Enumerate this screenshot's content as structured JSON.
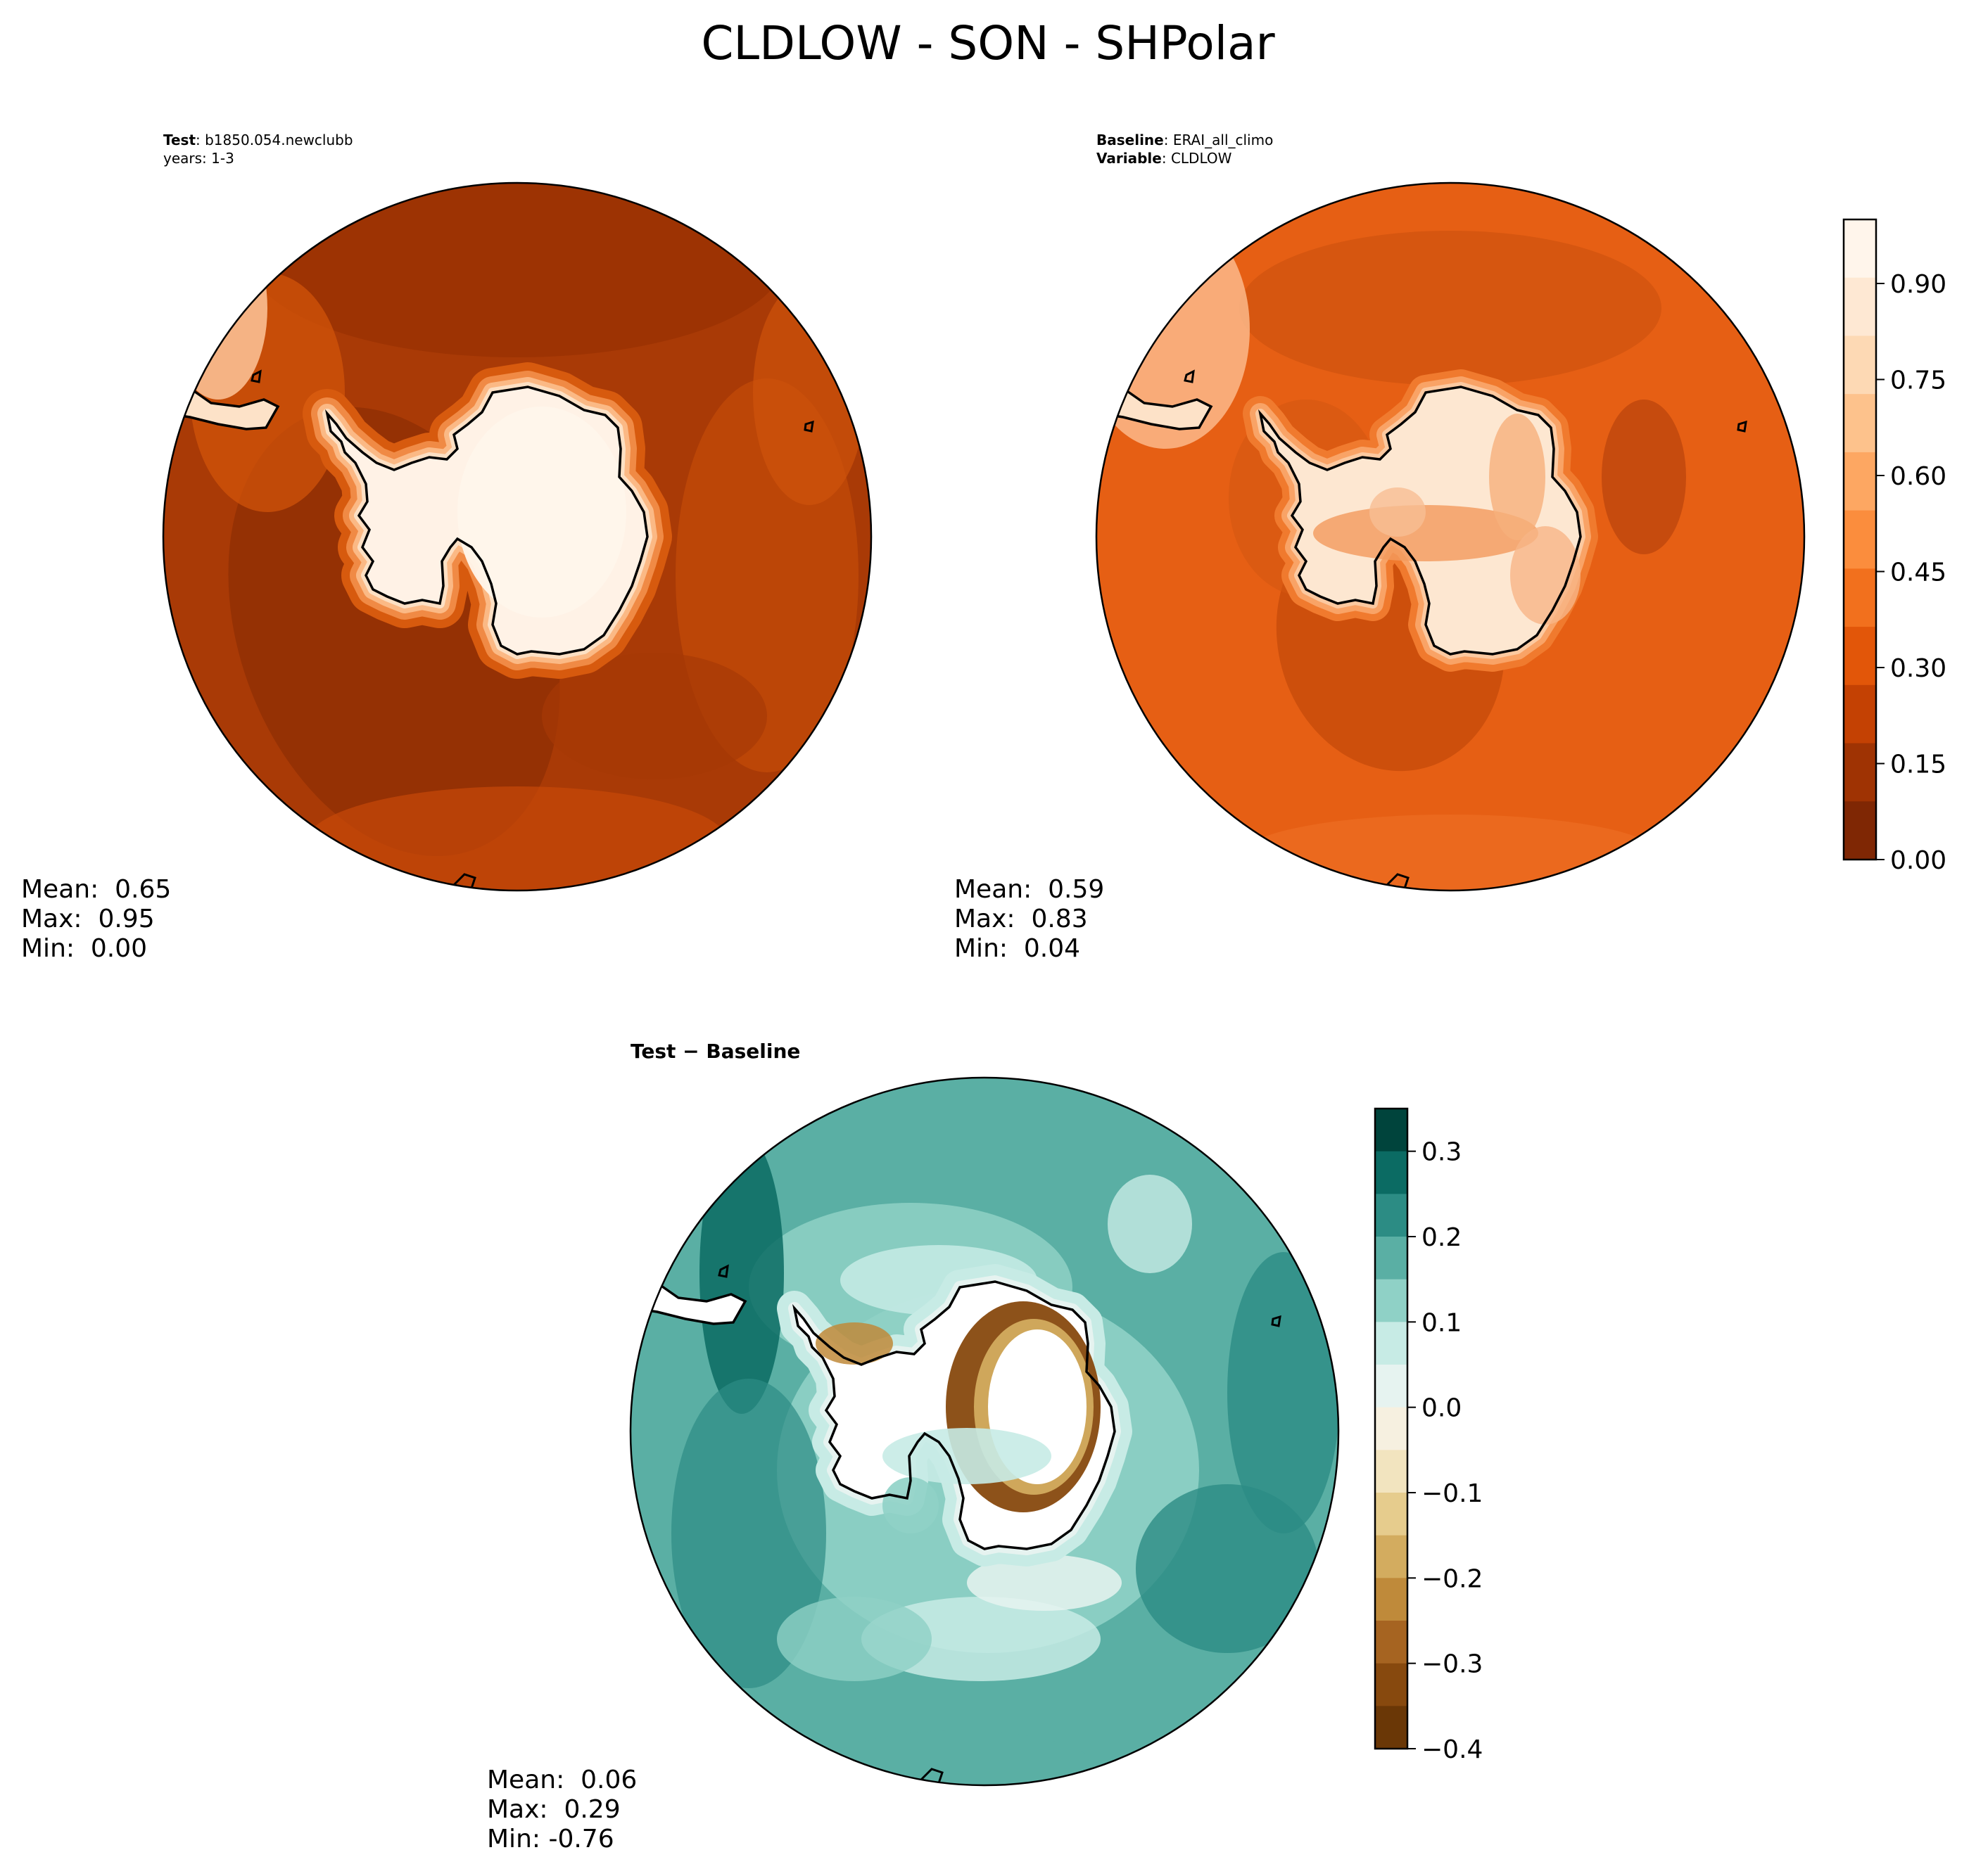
{
  "suptitle": "CLDLOW - SON - SHPolar",
  "panels": {
    "test": {
      "label_bold": "Test",
      "label_text": ": b1850.054.newclubb",
      "years": "years: 1-3",
      "stats": {
        "mean": "Mean:  0.65",
        "max": "Max:  0.95",
        "min": "Min:  0.00"
      }
    },
    "baseline": {
      "label_bold": "Baseline",
      "label_text": ": ERAI_all_climo",
      "var_bold": "Variable",
      "var_text": ": CLDLOW",
      "stats": {
        "mean": "Mean:  0.59",
        "max": "Max:  0.83",
        "min": "Min:  0.04"
      }
    },
    "diff": {
      "title": "Test − Baseline",
      "stats": {
        "mean": "Mean:  0.06",
        "max": "Max:  0.29",
        "min": "Min: -0.76"
      }
    }
  },
  "chart_data": [
    {
      "type": "heatmap",
      "panel": "test",
      "projection": "south polar stereographic",
      "mean": 0.65,
      "max": 0.95,
      "min": 0.0,
      "colormap": "Oranges",
      "levels": [
        0.0,
        1.0
      ]
    },
    {
      "type": "heatmap",
      "panel": "baseline",
      "projection": "south polar stereographic",
      "mean": 0.59,
      "max": 0.83,
      "min": 0.04,
      "colormap": "Oranges",
      "colorbar": {
        "range": [
          0.0,
          1.0
        ],
        "ticks": [
          "0.00",
          "0.15",
          "0.30",
          "0.45",
          "0.60",
          "0.75",
          "0.90"
        ],
        "tick_values": [
          0.0,
          0.15,
          0.3,
          0.45,
          0.6,
          0.75,
          0.9
        ],
        "colors": [
          "#fff5eb",
          "#fee8d3",
          "#fdd9b4",
          "#fdc28c",
          "#fda762",
          "#fb8d3d",
          "#f2701d",
          "#e25609",
          "#c44103",
          "#9f3303",
          "#7f2704"
        ]
      }
    },
    {
      "type": "heatmap",
      "panel": "diff",
      "projection": "south polar stereographic",
      "mean": 0.06,
      "max": 0.29,
      "min": -0.76,
      "colormap": "BrBG",
      "colorbar": {
        "range": [
          -0.4,
          0.35
        ],
        "ticks": [
          "0.3",
          "0.2",
          "0.1",
          "0.0",
          "−0.1",
          "−0.2",
          "−0.3",
          "−0.4"
        ],
        "tick_values": [
          0.3,
          0.2,
          0.1,
          0.0,
          -0.1,
          -0.2,
          -0.3,
          -0.4
        ],
        "colors": [
          "#00443c",
          "#0b6b63",
          "#2c8c84",
          "#5aafa4",
          "#8fd1c6",
          "#c7ebe5",
          "#e6f3f0",
          "#f6f0e0",
          "#f2e4bf",
          "#e6cc8d",
          "#d3ac5f",
          "#bf8a3a",
          "#a66421",
          "#87490e",
          "#6a3706"
        ]
      }
    }
  ],
  "colors": {
    "land_test": "#fff2e6",
    "ocean_test": "#a93a06",
    "ocean_baseline": "#e65f14",
    "ocean_diff": "#5aafa4",
    "coast": "#000000"
  }
}
